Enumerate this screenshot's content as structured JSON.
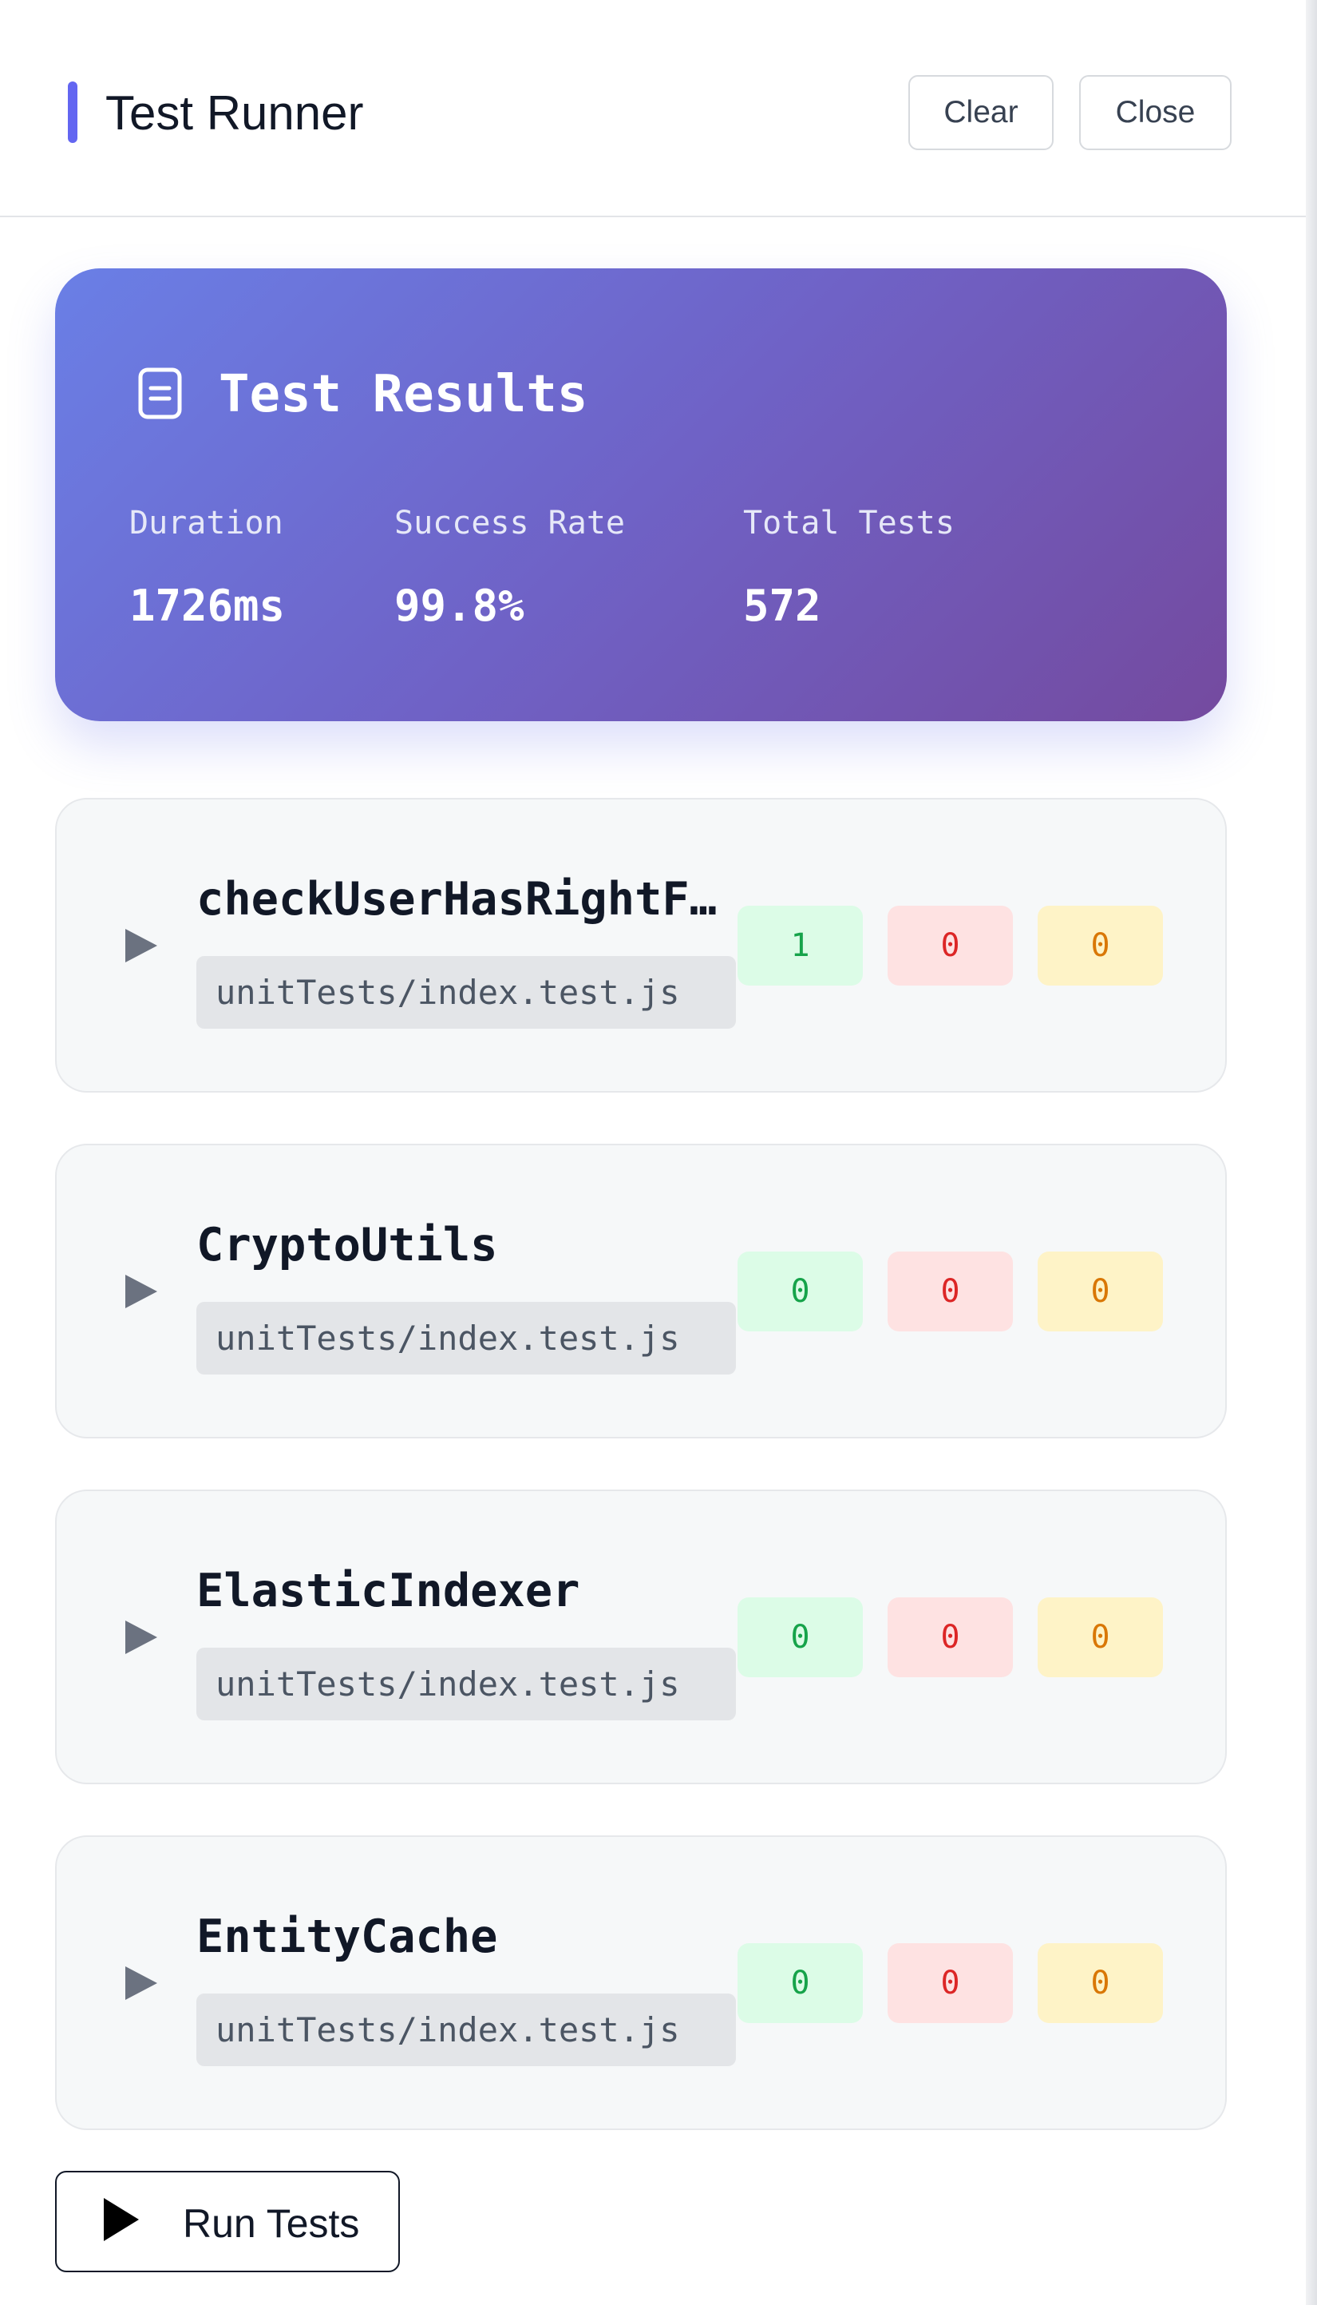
{
  "header": {
    "title": "Test Runner",
    "clear_label": "Clear",
    "close_label": "Close"
  },
  "summary": {
    "icon": "document-icon",
    "title": "Test Results",
    "stats": [
      {
        "label": "Duration",
        "value": "1726ms"
      },
      {
        "label": "Success Rate",
        "value": "99.8%"
      },
      {
        "label": "Total Tests",
        "value": "572"
      }
    ]
  },
  "suites": [
    {
      "name": "checkUserHasRightForAction",
      "path": "unitTests/index.test.js",
      "passed": "1",
      "failed": "0",
      "skipped": "0"
    },
    {
      "name": "CryptoUtils",
      "path": "unitTests/index.test.js",
      "passed": "0",
      "failed": "0",
      "skipped": "0"
    },
    {
      "name": "ElasticIndexer",
      "path": "unitTests/index.test.js",
      "passed": "0",
      "failed": "0",
      "skipped": "0"
    },
    {
      "name": "EntityCache",
      "path": "unitTests/index.test.js",
      "passed": "0",
      "failed": "0",
      "skipped": "0"
    }
  ],
  "actions": {
    "run_label": "Run Tests",
    "run_icon": "play-icon"
  },
  "colors": {
    "accent": "#6366f1",
    "pass": "#16a34a",
    "fail": "#dc2626",
    "skip": "#d97706"
  }
}
